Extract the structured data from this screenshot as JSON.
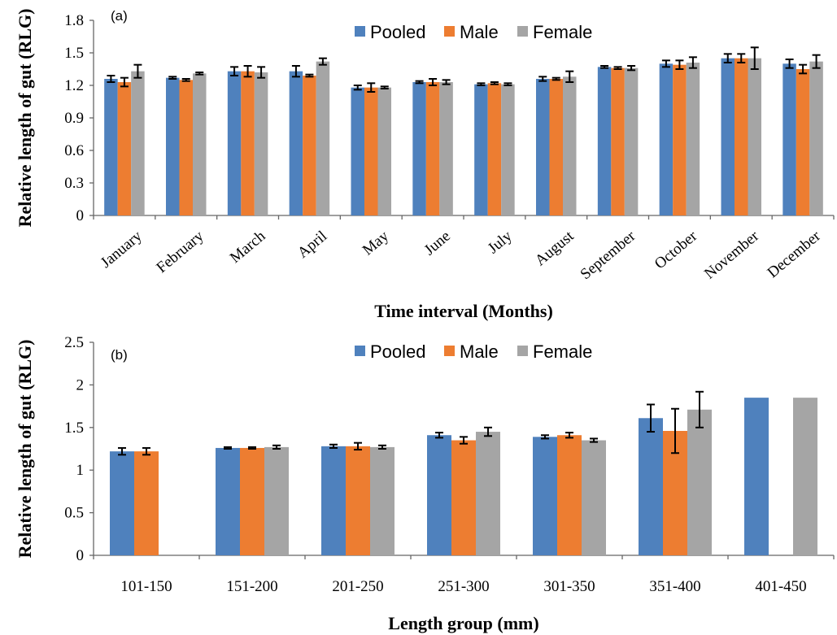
{
  "colors": {
    "Pooled": "#4f81bd",
    "Male": "#ed7d31",
    "Female": "#a5a5a5"
  },
  "chart_data": [
    {
      "type": "bar",
      "panel_label": "(a)",
      "xlabel": "Time interval (Months)",
      "ylabel": "Relative length of gut (RLG)",
      "ylim": [
        0,
        1.8
      ],
      "yticks": [
        "0",
        "0.3",
        "0.6",
        "0.9",
        "1.2",
        "1.5",
        "1.8"
      ],
      "legend_position": "top-center",
      "categories": [
        "January",
        "February",
        "March",
        "April",
        "May",
        "June",
        "July",
        "August",
        "September",
        "October",
        "November",
        "December"
      ],
      "series": [
        {
          "name": "Pooled",
          "values": [
            1.26,
            1.27,
            1.33,
            1.33,
            1.18,
            1.23,
            1.21,
            1.26,
            1.37,
            1.4,
            1.45,
            1.4
          ],
          "errors": [
            0.03,
            0.01,
            0.04,
            0.05,
            0.02,
            0.01,
            0.01,
            0.02,
            0.01,
            0.03,
            0.04,
            0.04
          ]
        },
        {
          "name": "Male",
          "values": [
            1.23,
            1.25,
            1.33,
            1.29,
            1.18,
            1.23,
            1.22,
            1.26,
            1.36,
            1.39,
            1.45,
            1.35
          ],
          "errors": [
            0.04,
            0.01,
            0.05,
            0.01,
            0.04,
            0.03,
            0.01,
            0.01,
            0.01,
            0.04,
            0.04,
            0.04
          ]
        },
        {
          "name": "Female",
          "values": [
            1.33,
            1.31,
            1.32,
            1.42,
            1.18,
            1.23,
            1.21,
            1.28,
            1.36,
            1.41,
            1.45,
            1.42
          ],
          "errors": [
            0.06,
            0.01,
            0.05,
            0.03,
            0.01,
            0.02,
            0.01,
            0.05,
            0.02,
            0.05,
            0.1,
            0.06
          ]
        }
      ]
    },
    {
      "type": "bar",
      "panel_label": "(b)",
      "xlabel": "Length group (mm)",
      "ylabel": "Relative length of gut (RLG)",
      "ylim": [
        0,
        2.5
      ],
      "yticks": [
        "0",
        "0.5",
        "1",
        "1.5",
        "2",
        "2.5"
      ],
      "legend_position": "top-center",
      "categories": [
        "101-150",
        "151-200",
        "201-250",
        "251-300",
        "301-350",
        "351-400",
        "401-450"
      ],
      "series": [
        {
          "name": "Pooled",
          "values": [
            1.22,
            1.26,
            1.28,
            1.41,
            1.39,
            1.61,
            1.85
          ],
          "errors": [
            0.04,
            0.01,
            0.02,
            0.03,
            0.02,
            0.16,
            null
          ]
        },
        {
          "name": "Male",
          "values": [
            1.22,
            1.26,
            1.28,
            1.35,
            1.41,
            1.46,
            null
          ],
          "errors": [
            0.04,
            0.01,
            0.04,
            0.04,
            0.03,
            0.26,
            null
          ]
        },
        {
          "name": "Female",
          "values": [
            null,
            1.27,
            1.27,
            1.45,
            1.35,
            1.71,
            1.85
          ],
          "errors": [
            null,
            0.02,
            0.02,
            0.05,
            0.02,
            0.21,
            null
          ]
        }
      ]
    }
  ]
}
